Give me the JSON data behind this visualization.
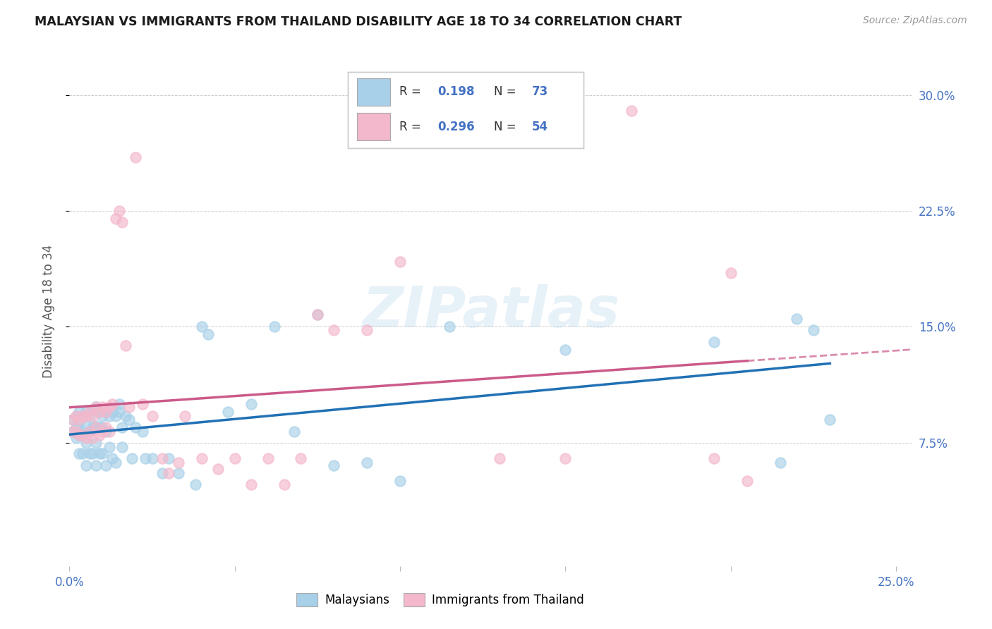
{
  "title": "MALAYSIAN VS IMMIGRANTS FROM THAILAND DISABILITY AGE 18 TO 34 CORRELATION CHART",
  "source": "Source: ZipAtlas.com",
  "ylabel": "Disability Age 18 to 34",
  "xlim": [
    0.0,
    0.255
  ],
  "ylim": [
    -0.005,
    0.325
  ],
  "ytick_vals": [
    0.075,
    0.15,
    0.225,
    0.3
  ],
  "ytick_labels": [
    "7.5%",
    "15.0%",
    "22.5%",
    "30.0%"
  ],
  "xtick_vals": [
    0.0,
    0.05,
    0.1,
    0.15,
    0.2,
    0.25
  ],
  "xtick_labels": [
    "0.0%",
    "",
    "",
    "",
    "",
    "25.0%"
  ],
  "blue_fill": "#a8d0e8",
  "pink_fill": "#f4b8cc",
  "blue_line": "#2171b5",
  "pink_line": "#cb5a8a",
  "watermark": "ZIPatlas",
  "r_blue": "0.198",
  "n_blue": "73",
  "r_pink": "0.296",
  "n_pink": "54",
  "blue_x": [
    0.001,
    0.001,
    0.002,
    0.002,
    0.002,
    0.003,
    0.003,
    0.003,
    0.003,
    0.004,
    0.004,
    0.004,
    0.005,
    0.005,
    0.005,
    0.005,
    0.006,
    0.006,
    0.006,
    0.007,
    0.007,
    0.007,
    0.008,
    0.008,
    0.008,
    0.008,
    0.009,
    0.009,
    0.009,
    0.01,
    0.01,
    0.01,
    0.011,
    0.011,
    0.011,
    0.012,
    0.012,
    0.013,
    0.013,
    0.014,
    0.014,
    0.015,
    0.015,
    0.016,
    0.016,
    0.017,
    0.018,
    0.019,
    0.02,
    0.022,
    0.023,
    0.025,
    0.028,
    0.03,
    0.033,
    0.038,
    0.04,
    0.042,
    0.048,
    0.055,
    0.062,
    0.068,
    0.075,
    0.08,
    0.09,
    0.1,
    0.115,
    0.15,
    0.195,
    0.215,
    0.22,
    0.225,
    0.23
  ],
  "blue_y": [
    0.09,
    0.082,
    0.092,
    0.085,
    0.078,
    0.095,
    0.088,
    0.08,
    0.068,
    0.092,
    0.082,
    0.068,
    0.095,
    0.086,
    0.075,
    0.06,
    0.092,
    0.082,
    0.068,
    0.096,
    0.085,
    0.068,
    0.098,
    0.086,
    0.075,
    0.06,
    0.095,
    0.085,
    0.068,
    0.092,
    0.085,
    0.068,
    0.095,
    0.082,
    0.06,
    0.092,
    0.072,
    0.095,
    0.065,
    0.092,
    0.062,
    0.095,
    0.1,
    0.085,
    0.072,
    0.092,
    0.09,
    0.065,
    0.085,
    0.082,
    0.065,
    0.065,
    0.055,
    0.065,
    0.055,
    0.048,
    0.15,
    0.145,
    0.095,
    0.1,
    0.15,
    0.082,
    0.158,
    0.06,
    0.062,
    0.05,
    0.15,
    0.135,
    0.14,
    0.062,
    0.155,
    0.148,
    0.09
  ],
  "pink_x": [
    0.001,
    0.001,
    0.002,
    0.002,
    0.003,
    0.003,
    0.004,
    0.004,
    0.005,
    0.005,
    0.006,
    0.006,
    0.007,
    0.007,
    0.008,
    0.008,
    0.009,
    0.009,
    0.01,
    0.01,
    0.011,
    0.011,
    0.012,
    0.012,
    0.013,
    0.014,
    0.015,
    0.016,
    0.017,
    0.018,
    0.02,
    0.022,
    0.025,
    0.028,
    0.03,
    0.033,
    0.035,
    0.04,
    0.045,
    0.05,
    0.055,
    0.06,
    0.065,
    0.07,
    0.075,
    0.08,
    0.09,
    0.1,
    0.13,
    0.15,
    0.17,
    0.195,
    0.2,
    0.205
  ],
  "pink_y": [
    0.09,
    0.082,
    0.092,
    0.082,
    0.09,
    0.08,
    0.092,
    0.08,
    0.092,
    0.078,
    0.095,
    0.082,
    0.092,
    0.078,
    0.098,
    0.085,
    0.095,
    0.08,
    0.098,
    0.082,
    0.095,
    0.085,
    0.098,
    0.082,
    0.1,
    0.22,
    0.225,
    0.218,
    0.138,
    0.098,
    0.26,
    0.1,
    0.092,
    0.065,
    0.055,
    0.062,
    0.092,
    0.065,
    0.058,
    0.065,
    0.048,
    0.065,
    0.048,
    0.065,
    0.158,
    0.148,
    0.148,
    0.192,
    0.065,
    0.065,
    0.29,
    0.065,
    0.185,
    0.05
  ]
}
